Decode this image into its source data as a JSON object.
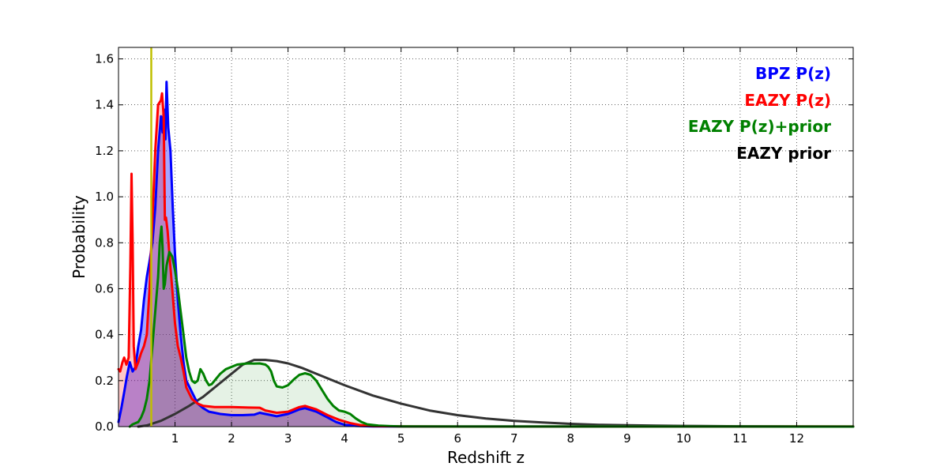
{
  "chart_data": {
    "type": "line",
    "title": "",
    "xlabel": "Redshift z",
    "ylabel": "Probability",
    "xlim": [
      0,
      13
    ],
    "ylim": [
      0,
      1.65
    ],
    "grid": true,
    "xticks": [
      1,
      2,
      3,
      4,
      5,
      6,
      7,
      8,
      9,
      10,
      11,
      12
    ],
    "xtick_labels": [
      "1",
      "2",
      "3",
      "4",
      "5",
      "6",
      "7",
      "8",
      "9",
      "10",
      "11",
      "12"
    ],
    "yticks": [
      0,
      0.2,
      0.4,
      0.6,
      0.8,
      1.0,
      1.2,
      1.4,
      1.6
    ],
    "ytick_labels": [
      "0.0",
      "0.2",
      "0.4",
      "0.6",
      "0.8",
      "1.0",
      "1.2",
      "1.4",
      "1.6"
    ],
    "reference_line": {
      "x": 0.58,
      "color": "#bfbf00"
    },
    "legend_position": "top-right",
    "series": [
      {
        "name": "BPZ P(z)",
        "color": "#0000ff",
        "fill": "#0000ff",
        "fill_opacity": 0.35,
        "points": [
          [
            0,
            0.02
          ],
          [
            0.05,
            0.08
          ],
          [
            0.1,
            0.15
          ],
          [
            0.15,
            0.22
          ],
          [
            0.2,
            0.28
          ],
          [
            0.25,
            0.24
          ],
          [
            0.3,
            0.26
          ],
          [
            0.35,
            0.35
          ],
          [
            0.4,
            0.42
          ],
          [
            0.45,
            0.55
          ],
          [
            0.5,
            0.65
          ],
          [
            0.55,
            0.72
          ],
          [
            0.6,
            0.8
          ],
          [
            0.65,
            0.95
          ],
          [
            0.7,
            1.2
          ],
          [
            0.75,
            1.35
          ],
          [
            0.78,
            1.28
          ],
          [
            0.8,
            1.38
          ],
          [
            0.83,
            1.25
          ],
          [
            0.85,
            1.5
          ],
          [
            0.88,
            1.3
          ],
          [
            0.92,
            1.2
          ],
          [
            0.96,
            0.95
          ],
          [
            1.0,
            0.75
          ],
          [
            1.05,
            0.55
          ],
          [
            1.1,
            0.4
          ],
          [
            1.15,
            0.28
          ],
          [
            1.2,
            0.2
          ],
          [
            1.3,
            0.15
          ],
          [
            1.4,
            0.1
          ],
          [
            1.5,
            0.08
          ],
          [
            1.6,
            0.065
          ],
          [
            1.7,
            0.06
          ],
          [
            1.8,
            0.055
          ],
          [
            2.0,
            0.05
          ],
          [
            2.2,
            0.05
          ],
          [
            2.4,
            0.052
          ],
          [
            2.5,
            0.06
          ],
          [
            2.6,
            0.055
          ],
          [
            2.8,
            0.045
          ],
          [
            3.0,
            0.055
          ],
          [
            3.2,
            0.075
          ],
          [
            3.3,
            0.08
          ],
          [
            3.5,
            0.065
          ],
          [
            3.7,
            0.04
          ],
          [
            3.85,
            0.02
          ],
          [
            4.0,
            0.008
          ],
          [
            4.2,
            0.003
          ],
          [
            4.5,
            0.001
          ],
          [
            5,
            0.0005
          ],
          [
            6,
            0.0003
          ],
          [
            8,
            0.0002
          ],
          [
            10,
            0.0002
          ],
          [
            12,
            0.0001
          ],
          [
            13,
            0.0001
          ]
        ]
      },
      {
        "name": "EAZY P(z)",
        "color": "#ff0000",
        "fill": "#ff0000",
        "fill_opacity": 0.22,
        "points": [
          [
            0,
            0.25
          ],
          [
            0.03,
            0.24
          ],
          [
            0.07,
            0.28
          ],
          [
            0.1,
            0.3
          ],
          [
            0.14,
            0.27
          ],
          [
            0.18,
            0.3
          ],
          [
            0.21,
            0.7
          ],
          [
            0.23,
            1.1
          ],
          [
            0.25,
            0.8
          ],
          [
            0.27,
            0.35
          ],
          [
            0.3,
            0.25
          ],
          [
            0.35,
            0.28
          ],
          [
            0.4,
            0.32
          ],
          [
            0.45,
            0.35
          ],
          [
            0.5,
            0.4
          ],
          [
            0.55,
            0.6
          ],
          [
            0.6,
            0.9
          ],
          [
            0.65,
            1.2
          ],
          [
            0.7,
            1.4
          ],
          [
            0.75,
            1.42
          ],
          [
            0.77,
            1.45
          ],
          [
            0.8,
            1.35
          ],
          [
            0.82,
            0.9
          ],
          [
            0.84,
            0.91
          ],
          [
            0.87,
            0.85
          ],
          [
            0.9,
            0.75
          ],
          [
            0.95,
            0.6
          ],
          [
            1.0,
            0.45
          ],
          [
            1.05,
            0.35
          ],
          [
            1.1,
            0.3
          ],
          [
            1.15,
            0.24
          ],
          [
            1.2,
            0.17
          ],
          [
            1.3,
            0.12
          ],
          [
            1.4,
            0.1
          ],
          [
            1.5,
            0.09
          ],
          [
            1.7,
            0.085
          ],
          [
            2.0,
            0.085
          ],
          [
            2.3,
            0.083
          ],
          [
            2.5,
            0.082
          ],
          [
            2.6,
            0.07
          ],
          [
            2.8,
            0.06
          ],
          [
            3.0,
            0.065
          ],
          [
            3.2,
            0.085
          ],
          [
            3.3,
            0.09
          ],
          [
            3.5,
            0.075
          ],
          [
            3.7,
            0.05
          ],
          [
            3.9,
            0.03
          ],
          [
            4.1,
            0.015
          ],
          [
            4.3,
            0.006
          ],
          [
            4.5,
            0.002
          ],
          [
            5,
            0.001
          ],
          [
            6,
            0.0005
          ],
          [
            13,
            0.0002
          ]
        ]
      },
      {
        "name": "EAZY P(z)+prior",
        "color": "#008000",
        "fill": "#008000",
        "fill_opacity": 0.1,
        "points": [
          [
            0.2,
            0.0
          ],
          [
            0.25,
            0.01
          ],
          [
            0.3,
            0.015
          ],
          [
            0.35,
            0.02
          ],
          [
            0.4,
            0.04
          ],
          [
            0.45,
            0.07
          ],
          [
            0.5,
            0.12
          ],
          [
            0.55,
            0.2
          ],
          [
            0.6,
            0.35
          ],
          [
            0.65,
            0.5
          ],
          [
            0.7,
            0.65
          ],
          [
            0.73,
            0.8
          ],
          [
            0.76,
            0.87
          ],
          [
            0.78,
            0.78
          ],
          [
            0.8,
            0.6
          ],
          [
            0.82,
            0.62
          ],
          [
            0.85,
            0.7
          ],
          [
            0.9,
            0.76
          ],
          [
            0.95,
            0.74
          ],
          [
            1.0,
            0.68
          ],
          [
            1.05,
            0.6
          ],
          [
            1.1,
            0.5
          ],
          [
            1.15,
            0.4
          ],
          [
            1.2,
            0.3
          ],
          [
            1.25,
            0.24
          ],
          [
            1.3,
            0.2
          ],
          [
            1.35,
            0.19
          ],
          [
            1.4,
            0.2
          ],
          [
            1.45,
            0.25
          ],
          [
            1.5,
            0.23
          ],
          [
            1.55,
            0.2
          ],
          [
            1.6,
            0.18
          ],
          [
            1.65,
            0.185
          ],
          [
            1.7,
            0.2
          ],
          [
            1.8,
            0.23
          ],
          [
            1.9,
            0.25
          ],
          [
            2.0,
            0.26
          ],
          [
            2.1,
            0.27
          ],
          [
            2.2,
            0.273
          ],
          [
            2.3,
            0.275
          ],
          [
            2.4,
            0.274
          ],
          [
            2.5,
            0.275
          ],
          [
            2.6,
            0.27
          ],
          [
            2.65,
            0.26
          ],
          [
            2.7,
            0.24
          ],
          [
            2.75,
            0.2
          ],
          [
            2.8,
            0.175
          ],
          [
            2.9,
            0.17
          ],
          [
            3.0,
            0.18
          ],
          [
            3.1,
            0.205
          ],
          [
            3.2,
            0.225
          ],
          [
            3.3,
            0.232
          ],
          [
            3.4,
            0.225
          ],
          [
            3.5,
            0.2
          ],
          [
            3.6,
            0.16
          ],
          [
            3.7,
            0.12
          ],
          [
            3.8,
            0.09
          ],
          [
            3.9,
            0.07
          ],
          [
            4.0,
            0.065
          ],
          [
            4.1,
            0.055
          ],
          [
            4.2,
            0.035
          ],
          [
            4.3,
            0.02
          ],
          [
            4.4,
            0.01
          ],
          [
            4.6,
            0.004
          ],
          [
            4.8,
            0.002
          ],
          [
            5,
            0.001
          ],
          [
            6,
            0.0005
          ],
          [
            8,
            0.0003
          ],
          [
            11,
            0.0002
          ],
          [
            13,
            0.0001
          ]
        ]
      },
      {
        "name": "EAZY prior",
        "color": "#333333",
        "fill": "none",
        "fill_opacity": 0,
        "points": [
          [
            0.35,
            0.0
          ],
          [
            0.5,
            0.005
          ],
          [
            0.75,
            0.025
          ],
          [
            1.0,
            0.055
          ],
          [
            1.25,
            0.09
          ],
          [
            1.5,
            0.13
          ],
          [
            1.75,
            0.18
          ],
          [
            2.0,
            0.23
          ],
          [
            2.2,
            0.27
          ],
          [
            2.4,
            0.29
          ],
          [
            2.6,
            0.29
          ],
          [
            2.8,
            0.285
          ],
          [
            3.0,
            0.275
          ],
          [
            3.25,
            0.255
          ],
          [
            3.5,
            0.23
          ],
          [
            3.75,
            0.205
          ],
          [
            4.0,
            0.18
          ],
          [
            4.5,
            0.135
          ],
          [
            5.0,
            0.1
          ],
          [
            5.5,
            0.07
          ],
          [
            6.0,
            0.05
          ],
          [
            6.5,
            0.035
          ],
          [
            7.0,
            0.025
          ],
          [
            7.5,
            0.018
          ],
          [
            8.0,
            0.012
          ],
          [
            8.5,
            0.008
          ],
          [
            9.0,
            0.006
          ],
          [
            9.5,
            0.004
          ],
          [
            10.0,
            0.003
          ],
          [
            11.0,
            0.0015
          ],
          [
            12.0,
            0.001
          ],
          [
            13.0,
            0.0005
          ]
        ]
      }
    ]
  }
}
